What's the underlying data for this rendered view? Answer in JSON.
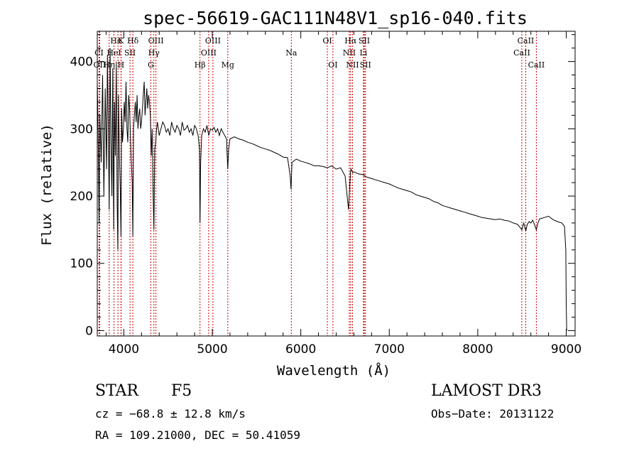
{
  "chart_data": {
    "type": "line",
    "title": "spec-56619-GAC111N48V1_sp16-040.fits",
    "xlabel": "Wavelength (Å)",
    "ylabel": "Flux (relative)",
    "xlim": [
      3700,
      9100
    ],
    "ylim": [
      -8,
      445
    ],
    "xticks": [
      4000,
      5000,
      6000,
      7000,
      8000,
      9000
    ],
    "yticks": [
      0,
      100,
      200,
      300,
      400
    ],
    "series": [
      {
        "name": "spectrum",
        "x": [
          3700,
          3710,
          3720,
          3730,
          3745,
          3760,
          3775,
          3790,
          3805,
          3815,
          3825,
          3835,
          3845,
          3855,
          3865,
          3875,
          3885,
          3895,
          3905,
          3915,
          3925,
          3933,
          3940,
          3950,
          3960,
          3968,
          3975,
          3985,
          3995,
          4005,
          4015,
          4025,
          4035,
          4045,
          4055,
          4065,
          4075,
          4085,
          4095,
          4102,
          4110,
          4120,
          4130,
          4140,
          4150,
          4160,
          4170,
          4180,
          4190,
          4200,
          4210,
          4220,
          4230,
          4240,
          4250,
          4260,
          4270,
          4280,
          4290,
          4300,
          4310,
          4320,
          4330,
          4340,
          4350,
          4360,
          4370,
          4380,
          4400,
          4420,
          4440,
          4460,
          4480,
          4500,
          4520,
          4540,
          4560,
          4580,
          4600,
          4620,
          4640,
          4660,
          4680,
          4700,
          4720,
          4740,
          4760,
          4780,
          4800,
          4820,
          4840,
          4855,
          4861,
          4868,
          4880,
          4900,
          4920,
          4940,
          4960,
          4980,
          5000,
          5020,
          5040,
          5060,
          5080,
          5100,
          5120,
          5140,
          5160,
          5175,
          5185,
          5200,
          5250,
          5300,
          5350,
          5400,
          5450,
          5500,
          5550,
          5600,
          5650,
          5700,
          5750,
          5800,
          5850,
          5880,
          5890,
          5900,
          5950,
          6000,
          6050,
          6100,
          6150,
          6200,
          6250,
          6300,
          6350,
          6400,
          6450,
          6500,
          6540,
          6555,
          6563,
          6570,
          6585,
          6600,
          6650,
          6700,
          6750,
          6800,
          6850,
          6900,
          6950,
          7000,
          7050,
          7100,
          7150,
          7200,
          7250,
          7300,
          7350,
          7400,
          7450,
          7500,
          7550,
          7600,
          7650,
          7700,
          7750,
          7800,
          7850,
          7900,
          7950,
          8000,
          8050,
          8100,
          8150,
          8200,
          8250,
          8300,
          8350,
          8400,
          8450,
          8498,
          8520,
          8542,
          8560,
          8580,
          8600,
          8620,
          8640,
          8662,
          8680,
          8700,
          8750,
          8800,
          8850,
          8900,
          8950,
          8980,
          8995,
          9000,
          9005
        ],
        "values": [
          370,
          300,
          160,
          320,
          250,
          380,
          200,
          360,
          240,
          410,
          300,
          180,
          420,
          280,
          200,
          390,
          150,
          340,
          260,
          400,
          190,
          120,
          350,
          260,
          210,
          140,
          330,
          280,
          300,
          340,
          310,
          370,
          300,
          280,
          350,
          330,
          290,
          250,
          220,
          140,
          300,
          320,
          340,
          310,
          350,
          300,
          320,
          330,
          300,
          310,
          330,
          350,
          370,
          320,
          340,
          360,
          330,
          350,
          340,
          320,
          260,
          300,
          210,
          150,
          270,
          280,
          300,
          310,
          290,
          300,
          310,
          305,
          295,
          300,
          290,
          310,
          300,
          295,
          305,
          300,
          290,
          310,
          298,
          300,
          305,
          295,
          300,
          290,
          305,
          300,
          290,
          270,
          160,
          250,
          290,
          300,
          295,
          305,
          290,
          300,
          298,
          302,
          295,
          300,
          290,
          300,
          295,
          290,
          285,
          240,
          270,
          285,
          288,
          285,
          283,
          280,
          278,
          275,
          272,
          270,
          268,
          265,
          262,
          258,
          257,
          230,
          210,
          250,
          255,
          252,
          250,
          248,
          245,
          245,
          244,
          242,
          245,
          240,
          242,
          230,
          180,
          220,
          238,
          240,
          235,
          236,
          233,
          232,
          228,
          226,
          224,
          222,
          220,
          218,
          215,
          212,
          210,
          208,
          206,
          202,
          200,
          198,
          196,
          192,
          190,
          186,
          184,
          182,
          180,
          178,
          176,
          174,
          172,
          170,
          168,
          167,
          166,
          165,
          166,
          164,
          163,
          160,
          158,
          150,
          160,
          148,
          158,
          162,
          160,
          164,
          158,
          150,
          160,
          166,
          168,
          170,
          165,
          162,
          160,
          155,
          120,
          40,
          0
        ]
      }
    ],
    "line_markers": [
      {
        "label": "Hε",
        "x": 3970,
        "row": 0,
        "ha": "end"
      },
      {
        "label": "K",
        "x": 3934,
        "row": 0,
        "ha": "start"
      },
      {
        "label": "Hδ",
        "x": 4102,
        "row": 0,
        "ha": "middle"
      },
      {
        "label": "OIII",
        "x": 4363,
        "row": 0,
        "ha": "middle"
      },
      {
        "label": "OIII",
        "x": 5007,
        "row": 0,
        "ha": "middle"
      },
      {
        "label": "OI",
        "x": 6300,
        "row": 0,
        "ha": "middle"
      },
      {
        "label": "Hα",
        "x": 6563,
        "row": 0,
        "ha": "middle"
      },
      {
        "label": "SII",
        "x": 6717,
        "row": 0,
        "ha": "middle"
      },
      {
        "label": "CaII",
        "x": 8542,
        "row": 0,
        "ha": "middle"
      },
      {
        "label": "CI",
        "x": 3720,
        "row": 1,
        "ha": "middle"
      },
      {
        "label": "HeI",
        "x": 3889,
        "row": 1,
        "ha": "middle"
      },
      {
        "label": "SII",
        "x": 4070,
        "row": 1,
        "ha": "middle"
      },
      {
        "label": "Hγ",
        "x": 4340,
        "row": 1,
        "ha": "middle"
      },
      {
        "label": "OIII",
        "x": 4959,
        "row": 1,
        "ha": "middle"
      },
      {
        "label": "Na",
        "x": 5893,
        "row": 1,
        "ha": "middle"
      },
      {
        "label": "NII",
        "x": 6548,
        "row": 1,
        "ha": "middle"
      },
      {
        "label": "Li",
        "x": 6708,
        "row": 1,
        "ha": "middle"
      },
      {
        "label": "CaII",
        "x": 8498,
        "row": 1,
        "ha": "middle"
      },
      {
        "label": "OII",
        "x": 3727,
        "row": 2,
        "ha": "middle"
      },
      {
        "label": "Hη",
        "x": 3835,
        "row": 2,
        "ha": "middle"
      },
      {
        "label": "H",
        "x": 3968,
        "row": 2,
        "ha": "middle"
      },
      {
        "label": "G",
        "x": 4305,
        "row": 2,
        "ha": "middle"
      },
      {
        "label": "Hβ",
        "x": 4861,
        "row": 2,
        "ha": "middle"
      },
      {
        "label": "Mg",
        "x": 5175,
        "row": 2,
        "ha": "middle"
      },
      {
        "label": "OI",
        "x": 6363,
        "row": 2,
        "ha": "middle"
      },
      {
        "label": "NII",
        "x": 6584,
        "row": 2,
        "ha": "middle"
      },
      {
        "label": "SII",
        "x": 6731,
        "row": 2,
        "ha": "middle"
      },
      {
        "label": "CaII",
        "x": 8662,
        "row": 2,
        "ha": "middle"
      }
    ],
    "line_marker_color": "#cc0000"
  },
  "info": {
    "object_type": "STAR",
    "subclass": "F5",
    "survey": "LAMOST DR3",
    "redshift": "cz = −68.8 ± 12.8 km/s",
    "obs_date": "Obs−Date: 20131122",
    "coords": "RA = 109.21000, DEC =  50.41059"
  }
}
